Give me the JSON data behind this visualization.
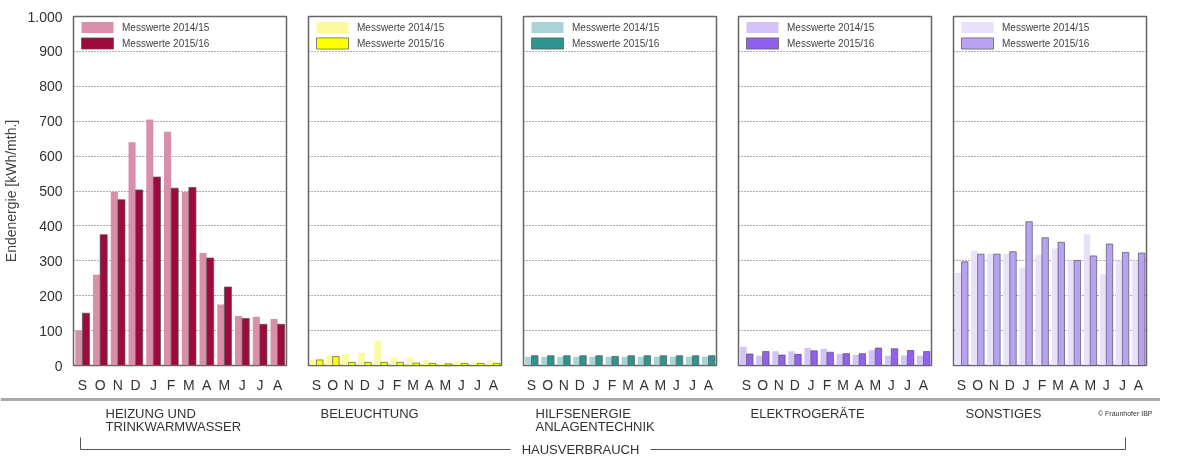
{
  "chart_data": [
    {
      "type": "bar",
      "xlabel": "HEIZUNG UND\nTRINKWARMWASSER",
      "ylabel": "Endenergie [kWh/mth.]",
      "categories": [
        "S",
        "O",
        "N",
        "D",
        "J",
        "F",
        "M",
        "A",
        "M",
        "J",
        "J",
        "A"
      ],
      "ylim": [
        0,
        1000
      ],
      "yticks": [
        0,
        100,
        200,
        300,
        400,
        500,
        600,
        700,
        800,
        900,
        {
          "value": 1000,
          "label": "1.000"
        }
      ],
      "grid": "y",
      "legend": "top left",
      "series": [
        {
          "name": "Messwerte 2014/15",
          "color": "#d98fab",
          "values": [
            100,
            260,
            497,
            640,
            705,
            670,
            497,
            322,
            175,
            142,
            140,
            133
          ]
        },
        {
          "name": "Messwerte 2015/16",
          "color": "#9e0a3c",
          "values": [
            150,
            375,
            475,
            503,
            540,
            508,
            510,
            308,
            225,
            135,
            118,
            118
          ]
        }
      ],
      "annotations": [
        "HAUSVERBRAUCH",
        "© Fraunhofer IBP"
      ]
    },
    {
      "type": "bar",
      "xlabel": "BELEUCHTUNG",
      "categories": [
        "S",
        "O",
        "N",
        "D",
        "J",
        "F",
        "M",
        "A",
        "M",
        "J",
        "J",
        "A"
      ],
      "ylim": [
        0,
        1000
      ],
      "yticks": [
        0,
        100,
        200,
        300,
        400,
        500,
        600,
        700,
        800,
        900
      ],
      "grid": "y",
      "legend": "top left",
      "tick_labels": "x",
      "series": [
        {
          "name": "Messwerte 2014/15",
          "color": "#fbfb9c",
          "values": [
            17,
            28,
            33,
            36,
            71,
            22,
            22,
            15,
            6,
            10,
            9,
            14
          ]
        },
        {
          "name": "Messwerte 2015/16",
          "color": "#ffff00",
          "values": [
            16,
            26,
            9,
            9,
            9,
            9,
            7,
            6,
            5,
            6,
            6,
            6
          ]
        }
      ]
    },
    {
      "type": "bar",
      "xlabel": "HILFSENERGIE\nANLAGENTECHNIK",
      "categories": [
        "S",
        "O",
        "N",
        "D",
        "J",
        "F",
        "M",
        "A",
        "M",
        "J",
        "J",
        "A"
      ],
      "ylim": [
        0,
        1000
      ],
      "yticks": [
        0,
        100,
        200,
        300,
        400,
        500,
        600,
        700,
        800,
        900
      ],
      "grid": "y",
      "legend": "top left",
      "tick_labels": "x",
      "series": [
        {
          "name": "Messwerte 2014/15",
          "color": "#a9d3d6",
          "values": [
            25,
            25,
            25,
            25,
            25,
            25,
            25,
            25,
            25,
            25,
            25,
            25
          ]
        },
        {
          "name": "Messwerte 2015/16",
          "color": "#2e9490",
          "values": [
            28,
            28,
            28,
            28,
            28,
            26,
            28,
            28,
            28,
            28,
            28,
            28
          ]
        }
      ]
    },
    {
      "type": "bar",
      "xlabel": "ELEKTROGERÄTE",
      "categories": [
        "S",
        "O",
        "N",
        "D",
        "J",
        "F",
        "M",
        "A",
        "M",
        "J",
        "J",
        "A"
      ],
      "ylim": [
        0,
        1000
      ],
      "yticks": [
        0,
        100,
        200,
        300,
        400,
        500,
        600,
        700,
        800,
        900
      ],
      "grid": "y",
      "legend": "top left",
      "tick_labels": "x",
      "series": [
        {
          "name": "Messwerte 2014/15",
          "color": "#d3c3f9",
          "values": [
            54,
            28,
            41,
            41,
            50,
            48,
            34,
            31,
            44,
            28,
            29,
            28
          ]
        },
        {
          "name": "Messwerte 2015/16",
          "color": "#9160ee",
          "values": [
            33,
            40,
            30,
            32,
            42,
            38,
            34,
            34,
            50,
            48,
            43,
            40
          ]
        }
      ]
    },
    {
      "type": "bar",
      "xlabel": "SONSTIGES",
      "categories": [
        "S",
        "O",
        "N",
        "D",
        "J",
        "F",
        "M",
        "A",
        "M",
        "J",
        "J",
        "A"
      ],
      "ylim": [
        0,
        1000
      ],
      "yticks": [
        0,
        100,
        200,
        300,
        400,
        500,
        600,
        700,
        800,
        900
      ],
      "grid": "y",
      "legend": "top left",
      "tick_labels": "x",
      "series": [
        {
          "name": "Messwerte 2014/15",
          "color": "#e9e0fb",
          "values": [
            265,
            329,
            320,
            320,
            280,
            317,
            335,
            301,
            376,
            262,
            300,
            300
          ]
        },
        {
          "name": "Messwerte 2015/16",
          "color": "#b9a2f3",
          "values": [
            297,
            319,
            319,
            326,
            412,
            366,
            353,
            301,
            314,
            348,
            324,
            322
          ]
        }
      ]
    }
  ]
}
